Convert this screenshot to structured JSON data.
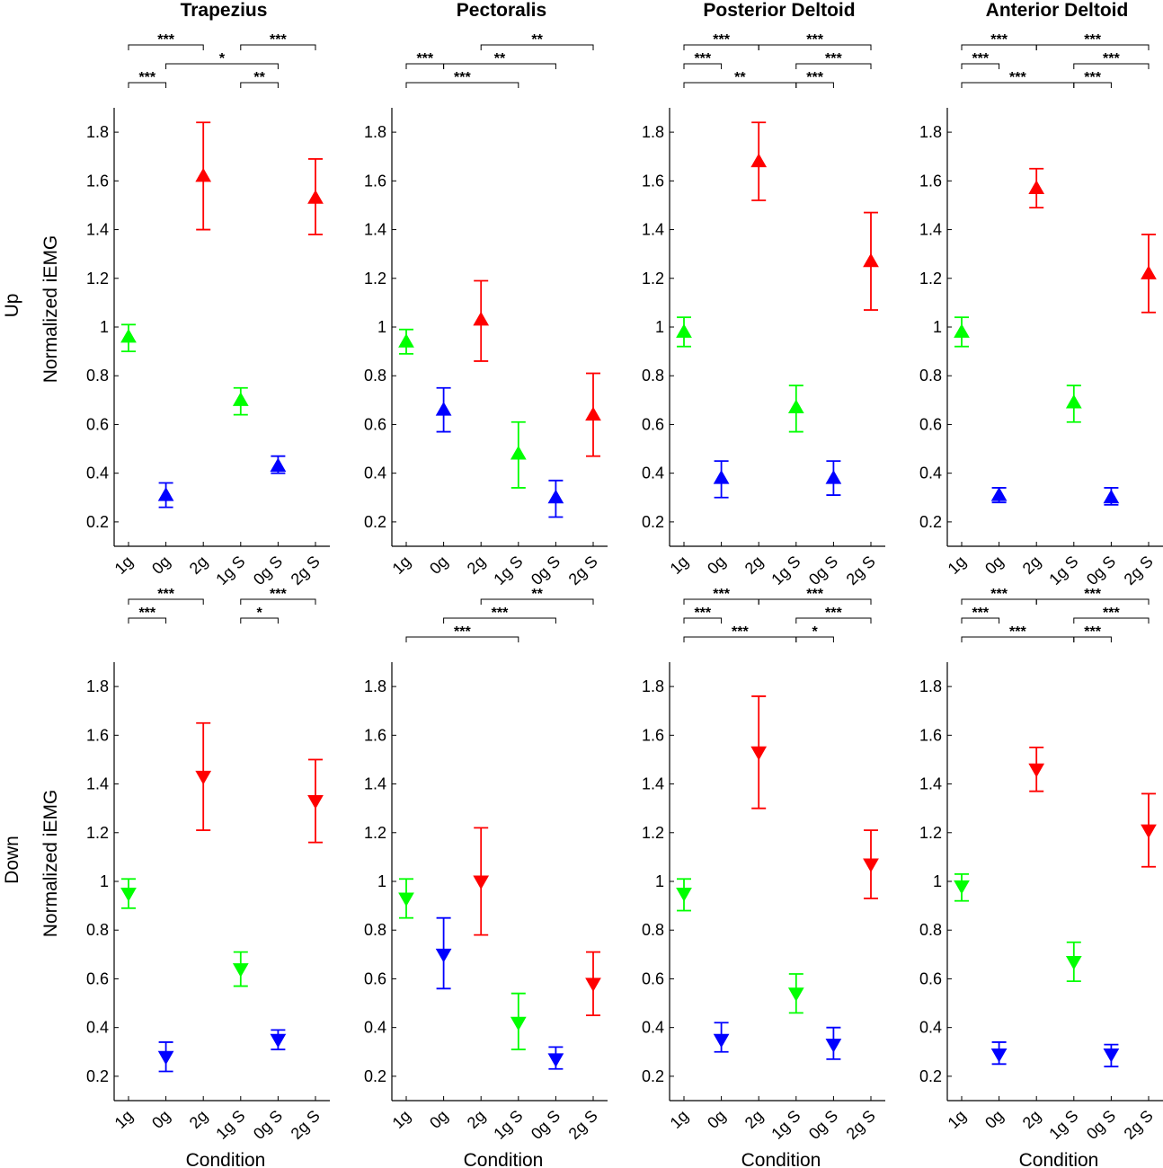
{
  "chart_data": [
    {
      "type": "errorbar-scatter",
      "title": "Trapezius",
      "row": "Up",
      "xlabel": "",
      "ylabel": "Normalized iEMG",
      "categories": [
        "1g",
        "0g",
        "2g",
        "1g S",
        "0g S",
        "2g S"
      ],
      "ylim": [
        0.1,
        1.9
      ],
      "yticks": [
        "0.2",
        "0.4",
        "0.6",
        "0.8",
        "1",
        "1.2",
        "1.4",
        "1.6",
        "1.8"
      ],
      "marker": "up",
      "colors": [
        "#00ff00",
        "#0000ff",
        "#ff0000",
        "#00ff00",
        "#0000ff",
        "#ff0000"
      ],
      "values": [
        0.96,
        0.31,
        1.62,
        0.7,
        0.43,
        1.53
      ],
      "err_low": [
        0.9,
        0.26,
        1.4,
        0.64,
        0.4,
        1.38
      ],
      "err_high": [
        1.01,
        0.36,
        1.84,
        0.75,
        0.47,
        1.69
      ],
      "significance": [
        {
          "from": 0,
          "to": 2,
          "level": 3,
          "label": "***"
        },
        {
          "from": 3,
          "to": 5,
          "level": 3,
          "label": "***"
        },
        {
          "from": 1,
          "to": 4,
          "level": 2,
          "label": "*"
        },
        {
          "from": 0,
          "to": 1,
          "level": 1,
          "label": "***"
        },
        {
          "from": 3,
          "to": 4,
          "level": 1,
          "label": "**"
        }
      ]
    },
    {
      "type": "errorbar-scatter",
      "title": "Pectoralis",
      "row": "Up",
      "xlabel": "",
      "ylabel": "",
      "categories": [
        "1g",
        "0g",
        "2g",
        "1g S",
        "0g S",
        "2g S"
      ],
      "ylim": [
        0.1,
        1.9
      ],
      "yticks": [
        "0.2",
        "0.4",
        "0.6",
        "0.8",
        "1",
        "1.2",
        "1.4",
        "1.6",
        "1.8"
      ],
      "marker": "up",
      "colors": [
        "#00ff00",
        "#0000ff",
        "#ff0000",
        "#00ff00",
        "#0000ff",
        "#ff0000"
      ],
      "values": [
        0.94,
        0.66,
        1.03,
        0.48,
        0.3,
        0.64
      ],
      "err_low": [
        0.89,
        0.57,
        0.86,
        0.34,
        0.22,
        0.47
      ],
      "err_high": [
        0.99,
        0.75,
        1.19,
        0.61,
        0.37,
        0.81
      ],
      "significance": [
        {
          "from": 2,
          "to": 5,
          "level": 3,
          "label": "**"
        },
        {
          "from": 0,
          "to": 1,
          "level": 2,
          "label": "***"
        },
        {
          "from": 1,
          "to": 4,
          "level": 2,
          "label": "**"
        },
        {
          "from": 0,
          "to": 3,
          "level": 1,
          "label": "***"
        }
      ]
    },
    {
      "type": "errorbar-scatter",
      "title": "Posterior Deltoid",
      "row": "Up",
      "xlabel": "",
      "ylabel": "",
      "categories": [
        "1g",
        "0g",
        "2g",
        "1g S",
        "0g S",
        "2g S"
      ],
      "ylim": [
        0.1,
        1.9
      ],
      "yticks": [
        "0.2",
        "0.4",
        "0.6",
        "0.8",
        "1",
        "1.2",
        "1.4",
        "1.6",
        "1.8"
      ],
      "marker": "up",
      "colors": [
        "#00ff00",
        "#0000ff",
        "#ff0000",
        "#00ff00",
        "#0000ff",
        "#ff0000"
      ],
      "values": [
        0.98,
        0.38,
        1.68,
        0.67,
        0.38,
        1.27
      ],
      "err_low": [
        0.92,
        0.3,
        1.52,
        0.57,
        0.31,
        1.07
      ],
      "err_high": [
        1.04,
        0.45,
        1.84,
        0.76,
        0.45,
        1.47
      ],
      "significance": [
        {
          "from": 0,
          "to": 2,
          "level": 3,
          "label": "***"
        },
        {
          "from": 2,
          "to": 5,
          "level": 3,
          "label": "***"
        },
        {
          "from": 0,
          "to": 1,
          "level": 2,
          "label": "***"
        },
        {
          "from": 3,
          "to": 5,
          "level": 2,
          "label": "***"
        },
        {
          "from": 0,
          "to": 3,
          "level": 1,
          "label": "**"
        },
        {
          "from": 3,
          "to": 4,
          "level": 1,
          "label": "***"
        }
      ]
    },
    {
      "type": "errorbar-scatter",
      "title": "Anterior Deltoid",
      "row": "Up",
      "xlabel": "",
      "ylabel": "",
      "categories": [
        "1g",
        "0g",
        "2g",
        "1g S",
        "0g S",
        "2g S"
      ],
      "ylim": [
        0.1,
        1.9
      ],
      "yticks": [
        "0.2",
        "0.4",
        "0.6",
        "0.8",
        "1",
        "1.2",
        "1.4",
        "1.6",
        "1.8"
      ],
      "marker": "up",
      "colors": [
        "#00ff00",
        "#0000ff",
        "#ff0000",
        "#00ff00",
        "#0000ff",
        "#ff0000"
      ],
      "values": [
        0.98,
        0.31,
        1.57,
        0.69,
        0.3,
        1.22
      ],
      "err_low": [
        0.92,
        0.28,
        1.49,
        0.61,
        0.27,
        1.06
      ],
      "err_high": [
        1.04,
        0.34,
        1.65,
        0.76,
        0.34,
        1.38
      ],
      "significance": [
        {
          "from": 0,
          "to": 2,
          "level": 3,
          "label": "***"
        },
        {
          "from": 2,
          "to": 5,
          "level": 3,
          "label": "***"
        },
        {
          "from": 0,
          "to": 1,
          "level": 2,
          "label": "***"
        },
        {
          "from": 3,
          "to": 5,
          "level": 2,
          "label": "***"
        },
        {
          "from": 0,
          "to": 3,
          "level": 1,
          "label": "***"
        },
        {
          "from": 3,
          "to": 4,
          "level": 1,
          "label": "***"
        }
      ]
    },
    {
      "type": "errorbar-scatter",
      "title": "",
      "row": "Down",
      "xlabel": "Condition",
      "ylabel": "Normalized iEMG",
      "categories": [
        "1g",
        "0g",
        "2g",
        "1g S",
        "0g S",
        "2g S"
      ],
      "ylim": [
        0.1,
        1.9
      ],
      "yticks": [
        "0.2",
        "0.4",
        "0.6",
        "0.8",
        "1",
        "1.2",
        "1.4",
        "1.6",
        "1.8"
      ],
      "marker": "down",
      "colors": [
        "#00ff00",
        "#0000ff",
        "#ff0000",
        "#00ff00",
        "#0000ff",
        "#ff0000"
      ],
      "values": [
        0.95,
        0.28,
        1.43,
        0.64,
        0.35,
        1.33
      ],
      "err_low": [
        0.89,
        0.22,
        1.21,
        0.57,
        0.31,
        1.16
      ],
      "err_high": [
        1.01,
        0.34,
        1.65,
        0.71,
        0.39,
        1.5
      ],
      "significance": [
        {
          "from": 0,
          "to": 2,
          "level": 3,
          "label": "***"
        },
        {
          "from": 3,
          "to": 5,
          "level": 3,
          "label": "***"
        },
        {
          "from": 0,
          "to": 1,
          "level": 2,
          "label": "***"
        },
        {
          "from": 3,
          "to": 4,
          "level": 2,
          "label": "*"
        }
      ]
    },
    {
      "type": "errorbar-scatter",
      "title": "",
      "row": "Down",
      "xlabel": "Condition",
      "ylabel": "",
      "categories": [
        "1g",
        "0g",
        "2g",
        "1g S",
        "0g S",
        "2g S"
      ],
      "ylim": [
        0.1,
        1.9
      ],
      "yticks": [
        "0.2",
        "0.4",
        "0.6",
        "0.8",
        "1",
        "1.2",
        "1.4",
        "1.6",
        "1.8"
      ],
      "marker": "down",
      "colors": [
        "#00ff00",
        "#0000ff",
        "#ff0000",
        "#00ff00",
        "#0000ff",
        "#ff0000"
      ],
      "values": [
        0.93,
        0.7,
        1.0,
        0.42,
        0.27,
        0.58
      ],
      "err_low": [
        0.85,
        0.56,
        0.78,
        0.31,
        0.23,
        0.45
      ],
      "err_high": [
        1.01,
        0.85,
        1.22,
        0.54,
        0.32,
        0.71
      ],
      "significance": [
        {
          "from": 2,
          "to": 5,
          "level": 3,
          "label": "**"
        },
        {
          "from": 1,
          "to": 4,
          "level": 2,
          "label": "***"
        },
        {
          "from": 0,
          "to": 3,
          "level": 1,
          "label": "***"
        }
      ]
    },
    {
      "type": "errorbar-scatter",
      "title": "",
      "row": "Down",
      "xlabel": "Condition",
      "ylabel": "",
      "categories": [
        "1g",
        "0g",
        "2g",
        "1g S",
        "0g S",
        "2g S"
      ],
      "ylim": [
        0.1,
        1.9
      ],
      "yticks": [
        "0.2",
        "0.4",
        "0.6",
        "0.8",
        "1",
        "1.2",
        "1.4",
        "1.6",
        "1.8"
      ],
      "marker": "down",
      "colors": [
        "#00ff00",
        "#0000ff",
        "#ff0000",
        "#00ff00",
        "#0000ff",
        "#ff0000"
      ],
      "values": [
        0.95,
        0.35,
        1.53,
        0.54,
        0.33,
        1.07
      ],
      "err_low": [
        0.88,
        0.3,
        1.3,
        0.46,
        0.27,
        0.93
      ],
      "err_high": [
        1.01,
        0.42,
        1.76,
        0.62,
        0.4,
        1.21
      ],
      "significance": [
        {
          "from": 0,
          "to": 2,
          "level": 3,
          "label": "***"
        },
        {
          "from": 2,
          "to": 5,
          "level": 3,
          "label": "***"
        },
        {
          "from": 0,
          "to": 1,
          "level": 2,
          "label": "***"
        },
        {
          "from": 3,
          "to": 5,
          "level": 2,
          "label": "***"
        },
        {
          "from": 0,
          "to": 3,
          "level": 1,
          "label": "***"
        },
        {
          "from": 3,
          "to": 4,
          "level": 1,
          "label": "*"
        }
      ]
    },
    {
      "type": "errorbar-scatter",
      "title": "",
      "row": "Down",
      "xlabel": "Condition",
      "ylabel": "",
      "categories": [
        "1g",
        "0g",
        "2g",
        "1g S",
        "0g S",
        "2g S"
      ],
      "ylim": [
        0.1,
        1.9
      ],
      "yticks": [
        "0.2",
        "0.4",
        "0.6",
        "0.8",
        "1",
        "1.2",
        "1.4",
        "1.6",
        "1.8"
      ],
      "marker": "down",
      "colors": [
        "#00ff00",
        "#0000ff",
        "#ff0000",
        "#00ff00",
        "#0000ff",
        "#ff0000"
      ],
      "values": [
        0.98,
        0.29,
        1.46,
        0.67,
        0.29,
        1.21
      ],
      "err_low": [
        0.92,
        0.25,
        1.37,
        0.59,
        0.24,
        1.06
      ],
      "err_high": [
        1.03,
        0.34,
        1.55,
        0.75,
        0.33,
        1.36
      ],
      "significance": [
        {
          "from": 0,
          "to": 2,
          "level": 3,
          "label": "***"
        },
        {
          "from": 2,
          "to": 5,
          "level": 3,
          "label": "***"
        },
        {
          "from": 0,
          "to": 1,
          "level": 2,
          "label": "***"
        },
        {
          "from": 3,
          "to": 5,
          "level": 2,
          "label": "***"
        },
        {
          "from": 0,
          "to": 3,
          "level": 1,
          "label": "***"
        },
        {
          "from": 3,
          "to": 4,
          "level": 1,
          "label": "***"
        }
      ]
    }
  ]
}
